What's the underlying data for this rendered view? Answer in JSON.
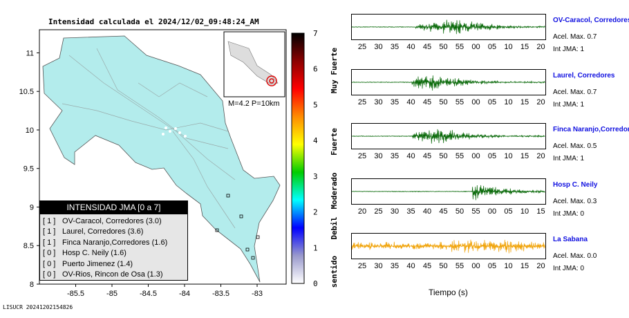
{
  "title": "Intensidad calculada el 2024/12/02_09:48:24_AM",
  "footer_id": "LISUCR 20241202154826",
  "map": {
    "x_ticks": [
      "-85.5",
      "-85",
      "-84.5",
      "-84",
      "-83.5",
      "-83"
    ],
    "y_ticks": [
      "11",
      "10.5",
      "10",
      "9.5",
      "9",
      "8.5",
      "8"
    ],
    "x_tick_values": [
      -85.5,
      -85,
      -84.5,
      -84,
      -83.5,
      -83
    ],
    "y_tick_values": [
      11,
      10.5,
      10,
      9.5,
      9,
      8.5,
      8
    ],
    "xlim": [
      -86,
      -82.6
    ],
    "ylim": [
      8,
      11.3
    ],
    "land_color": "#b3ecec",
    "inset_caption": "M=4.2 P=10km",
    "epicenter": {
      "lon": -82.8,
      "lat": 8.55
    }
  },
  "legend": {
    "title": "INTENSIDAD JMA [0 a 7]",
    "items": [
      {
        "int": "[ 1 ]",
        "label": "OV-Caracol, Corredores (3.0)"
      },
      {
        "int": "[ 1 ]",
        "label": "Laurel, Corredores (3.6)"
      },
      {
        "int": "[ 1 ]",
        "label": "Finca Naranjo,Corredores (1.6)"
      },
      {
        "int": "[ 0 ]",
        "label": "Hosp C. Neily (1.6)"
      },
      {
        "int": "[ 0 ]",
        "label": "Puerto Jimenez (1.4)"
      },
      {
        "int": "[ 0 ]",
        "label": "OV-Rios, Rincon de Osa (1.3)"
      }
    ]
  },
  "scale": {
    "numbers": [
      "7",
      "6",
      "5",
      "4",
      "3",
      "2",
      "1",
      "0"
    ],
    "words": [
      "Muy Fuerte",
      "Fuerte",
      "Moderado",
      "Debil",
      "No sentido"
    ],
    "colors": [
      "#000000",
      "#8b0000",
      "#ff0000",
      "#ff8c00",
      "#ffff00",
      "#00cc00",
      "#00ffff",
      "#0000ff",
      "#9999cc",
      "#ffffff"
    ]
  },
  "time_label": "Tiempo (s)",
  "chart_data": [
    {
      "type": "line",
      "station": "OV-Caracol, Corredores",
      "accel_label": "Acel. Max. 0.7",
      "int_label": "Int JMA: 1",
      "color": "#006400",
      "x_ticks": [
        "25",
        "30",
        "35",
        "40",
        "45",
        "50",
        "55",
        "00",
        "05",
        "10",
        "15",
        "20"
      ],
      "onset_fraction": 0.33,
      "peak_fraction": 0.53
    },
    {
      "type": "line",
      "station": "Laurel, Corredores",
      "accel_label": "Acel. Max. 0.7",
      "int_label": "Int JMA: 1",
      "color": "#006400",
      "x_ticks": [
        "25",
        "30",
        "35",
        "40",
        "45",
        "50",
        "55",
        "00",
        "05",
        "10",
        "15",
        "20"
      ],
      "onset_fraction": 0.31,
      "peak_fraction": 0.42
    },
    {
      "type": "line",
      "station": "Finca Naranjo,Corredores",
      "accel_label": "Acel. Max. 0.5",
      "int_label": "Int JMA: 1",
      "color": "#006400",
      "x_ticks": [
        "25",
        "30",
        "35",
        "40",
        "45",
        "50",
        "55",
        "00",
        "05",
        "10",
        "15",
        "20"
      ],
      "onset_fraction": 0.31,
      "peak_fraction": 0.45
    },
    {
      "type": "line",
      "station": "Hosp C. Neily",
      "accel_label": "Acel. Max. 0.3",
      "int_label": "Int JMA: 0",
      "color": "#006400",
      "x_ticks": [
        "20",
        "25",
        "30",
        "35",
        "40",
        "45",
        "50",
        "55",
        "00",
        "05",
        "10",
        "15"
      ],
      "onset_fraction": 0.62,
      "peak_fraction": 0.64
    },
    {
      "type": "line",
      "station": "La Sabana",
      "accel_label": "Acel. Max. 0.0",
      "int_label": "Int JMA: 0",
      "color": "#f0a000",
      "x_ticks": [
        "25",
        "30",
        "35",
        "40",
        "45",
        "50",
        "55",
        "00",
        "05",
        "10",
        "15",
        "20"
      ],
      "onset_fraction": 0.0,
      "peak_fraction": 0.5
    }
  ]
}
